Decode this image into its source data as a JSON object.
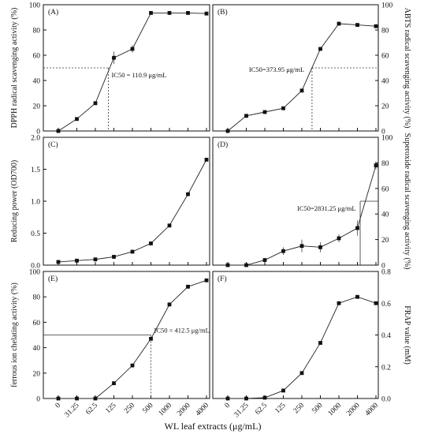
{
  "figure": {
    "xlabel": "WL leaf extracts (μg/mL)",
    "categories": [
      "0",
      "31.25",
      "62.5",
      "125",
      "250",
      "500",
      "1000",
      "2000",
      "4000"
    ]
  },
  "chart_data": [
    {
      "type": "line",
      "panel_label": "(A)",
      "ylabel": "DPPH radical scavenging activity (%)",
      "axis_side": "left",
      "ylim": [
        0,
        100
      ],
      "yticks": [
        0,
        20,
        40,
        60,
        80,
        100
      ],
      "x": [
        "0",
        "31.25",
        "62.5",
        "125",
        "250",
        "500",
        "1000",
        "2000",
        "4000"
      ],
      "values": [
        0,
        9.5,
        22,
        58,
        65,
        93.5,
        93.5,
        93.5,
        93
      ],
      "errors": [
        0,
        0.8,
        1.2,
        5,
        3,
        0.8,
        0.8,
        0.8,
        0.8
      ],
      "reference": {
        "y": 50,
        "x_index": 2.7,
        "label": "IC50 = 110.9 μg/mL"
      }
    },
    {
      "type": "line",
      "panel_label": "(B)",
      "ylabel": "ABTS radical scavenging activity (%)",
      "axis_side": "right",
      "ylim": [
        0,
        100
      ],
      "yticks": [
        0,
        20,
        40,
        60,
        80,
        100
      ],
      "x": [
        "0",
        "31.25",
        "62.5",
        "125",
        "250",
        "500",
        "1000",
        "2000",
        "4000"
      ],
      "values": [
        0,
        12,
        15,
        18,
        32,
        65,
        85,
        84,
        83
      ],
      "errors": [
        0,
        0.8,
        0.8,
        0.8,
        0.8,
        0.8,
        0.8,
        0.8,
        0.8
      ],
      "reference": {
        "y": 50,
        "x_index": 4.55,
        "label": "IC50=373.95 μg/mL"
      }
    },
    {
      "type": "line",
      "panel_label": "(C)",
      "ylabel": "Reducing power (OD700)",
      "axis_side": "left",
      "ylim": [
        0,
        2.0
      ],
      "yticks": [
        0.0,
        0.5,
        1.0,
        1.5,
        2.0
      ],
      "x": [
        "0",
        "31.25",
        "62.5",
        "125",
        "250",
        "500",
        "1000",
        "2000",
        "4000"
      ],
      "values": [
        0.05,
        0.07,
        0.09,
        0.13,
        0.21,
        0.34,
        0.62,
        1.11,
        1.65
      ],
      "errors": [
        0.01,
        0.01,
        0.01,
        0.01,
        0.01,
        0.01,
        0.02,
        0.02,
        0.02
      ]
    },
    {
      "type": "line",
      "panel_label": "(D)",
      "ylabel": "Superoxide radical scavenging activity (%)",
      "axis_side": "right",
      "ylim": [
        0,
        100
      ],
      "yticks": [
        0,
        20,
        40,
        60,
        80,
        100
      ],
      "x": [
        "0",
        "31.25",
        "62.5",
        "125",
        "250",
        "500",
        "1000",
        "2000",
        "4000"
      ],
      "values": [
        0,
        0,
        4,
        11,
        15,
        14,
        21,
        29,
        78
      ],
      "errors": [
        0,
        0,
        1,
        3,
        5,
        4,
        3,
        6,
        3
      ],
      "reference": {
        "y": 50,
        "x_index": 7.15,
        "label": "IC50=2831.25 μg/mL"
      }
    },
    {
      "type": "line",
      "panel_label": "(E)",
      "ylabel": "ferrous ion chelating activity (%)",
      "axis_side": "left",
      "ylim": [
        0,
        100
      ],
      "yticks": [
        0,
        20,
        40,
        60,
        80,
        100
      ],
      "x": [
        "0",
        "31.25",
        "62.5",
        "125",
        "250",
        "500",
        "1000",
        "2000",
        "4000"
      ],
      "values": [
        0,
        0,
        0,
        12,
        26,
        47,
        74,
        88,
        93
      ],
      "errors": [
        0,
        0,
        0,
        0.8,
        0.8,
        0.8,
        0.8,
        0.8,
        0.8
      ],
      "reference": {
        "y": 50,
        "x_index": 5.0,
        "label": "IC50 = 412.5 μg/mL"
      }
    },
    {
      "type": "line",
      "panel_label": "(F)",
      "ylabel": "FRAP value (mM)",
      "axis_side": "right",
      "ylim": [
        0,
        0.8
      ],
      "yticks": [
        0.0,
        0.2,
        0.4,
        0.6,
        0.8
      ],
      "x": [
        "0",
        "31.25",
        "62.5",
        "125",
        "250",
        "500",
        "1000",
        "2000",
        "4000"
      ],
      "values": [
        0,
        0,
        0.005,
        0.05,
        0.16,
        0.35,
        0.6,
        0.64,
        0.6
      ],
      "errors": [
        0,
        0,
        0.003,
        0.005,
        0.005,
        0.01,
        0.01,
        0.01,
        0.01
      ]
    }
  ]
}
